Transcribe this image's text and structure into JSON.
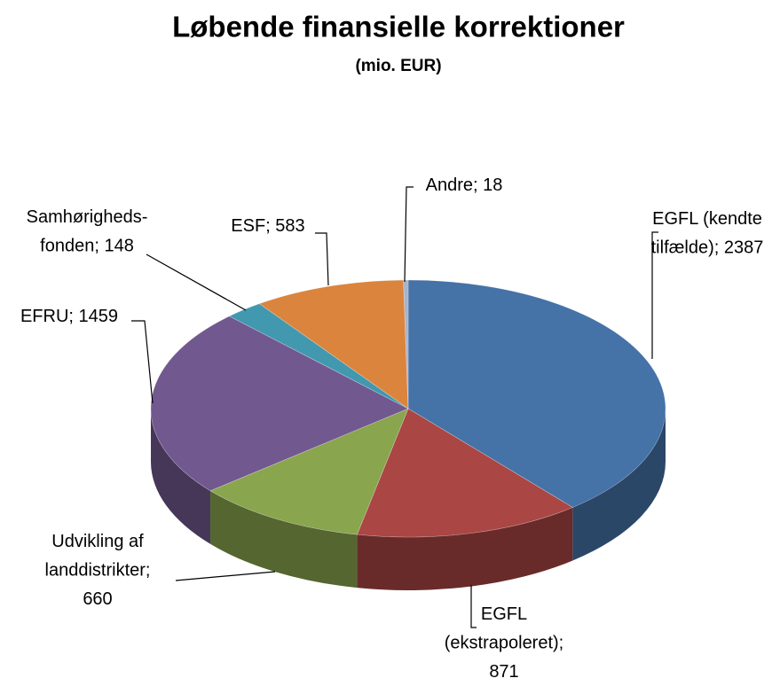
{
  "chart_data": {
    "type": "pie3d",
    "title": "Løbende finansielle korrektioner",
    "subtitle": "(mio. EUR)",
    "values": [
      2387,
      871,
      660,
      1459,
      148,
      583,
      18
    ],
    "value_labels": [
      "EGFL (kendte\ntilfælde); 2387",
      "EGFL\n(ekstrapoleret);\n871",
      "Udvikling af\nlanddistrikter;\n660",
      "EFRU; 1459",
      "Samhørigheds-\nfonden; 148",
      "ESF; 583",
      "Andre; 18"
    ],
    "colors": [
      "#4572a7",
      "#aa4643",
      "#89a54e",
      "#71588f",
      "#4198af",
      "#db843d",
      "#a9b3c9"
    ]
  }
}
